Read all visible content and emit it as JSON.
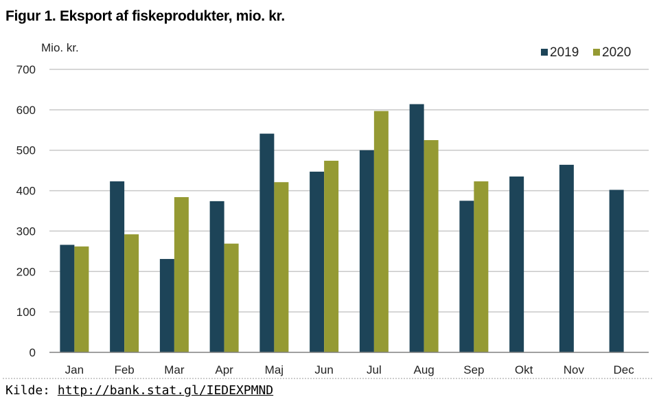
{
  "figure": {
    "title": "Figur 1. Eksport af fiskeprodukter, mio. kr.",
    "source_label": "Kilde:",
    "source_link": "http://bank.stat.gl/IEDEXPMND"
  },
  "chart_data": {
    "type": "bar",
    "title": "Figur 1. Eksport af fiskeprodukter, mio. kr.",
    "ylabel": "Mio. kr.",
    "xlabel": "",
    "ylim": [
      0,
      700
    ],
    "yticks": [
      0,
      100,
      200,
      300,
      400,
      500,
      600,
      700
    ],
    "grid": true,
    "legend_position": "top-right",
    "categories": [
      "Jan",
      "Feb",
      "Mar",
      "Apr",
      "Maj",
      "Jun",
      "Jul",
      "Aug",
      "Sep",
      "Okt",
      "Nov",
      "Dec"
    ],
    "series": [
      {
        "name": "2019",
        "color": "#1d4458",
        "values": [
          266,
          423,
          231,
          374,
          541,
          447,
          500,
          614,
          375,
          435,
          464,
          402
        ]
      },
      {
        "name": "2020",
        "color": "#959a33",
        "values": [
          262,
          292,
          384,
          269,
          421,
          474,
          597,
          525,
          423,
          null,
          null,
          null
        ]
      }
    ],
    "colors": {
      "grid": "#c8c8c8",
      "axis": "#808080"
    }
  }
}
